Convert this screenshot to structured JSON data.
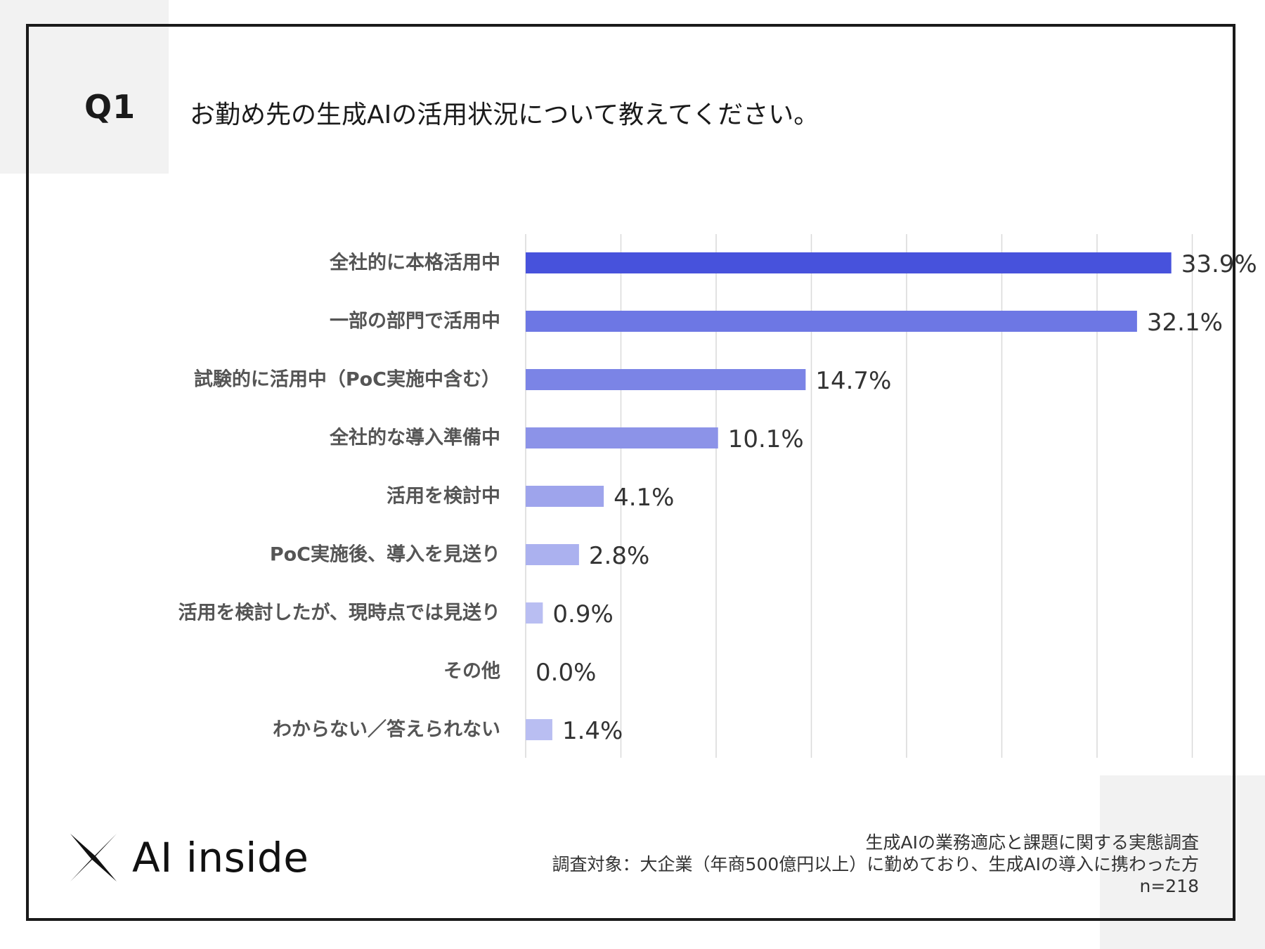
{
  "question": {
    "number": "Q1",
    "text": "お勤め先の生成AIの活用状況について教えてください。"
  },
  "chart_data": {
    "type": "bar",
    "orientation": "horizontal",
    "title": "お勤め先の生成AIの活用状況について教えてください。",
    "xlabel": "",
    "ylabel": "",
    "xlim": [
      0,
      40
    ],
    "grid": true,
    "categories": [
      "全社的に本格活用中",
      "一部の部門で活用中",
      "試験的に活用中（PoC実施中含む）",
      "全社的な導入準備中",
      "活用を検討中",
      "PoC実施後、導入を見送り",
      "活用を検討したが、現時点では見送り",
      "その他",
      "わからない／答えられない"
    ],
    "values": [
      33.9,
      32.1,
      14.7,
      10.1,
      4.1,
      2.8,
      0.9,
      0.0,
      1.4
    ],
    "value_labels": [
      "33.9%",
      "32.1%",
      "14.7%",
      "10.1%",
      "4.1%",
      "2.8%",
      "0.9%",
      "0.0%",
      "1.4%"
    ],
    "bar_colors": [
      "#4752dc",
      "#6d77e4",
      "#7b84e6",
      "#8c93e8",
      "#9ea4ec",
      "#abb1ef",
      "#b9bef2",
      "#c3c7f4",
      "#b9bef2"
    ]
  },
  "logo": {
    "text": "AI inside"
  },
  "footnote": {
    "line1": "生成AIの業務適応と課題に関する実態調査",
    "line2": "調査対象：大企業（年商500億円以上）に勤めており、生成AIの導入に携わった方",
    "line3": "n=218"
  }
}
